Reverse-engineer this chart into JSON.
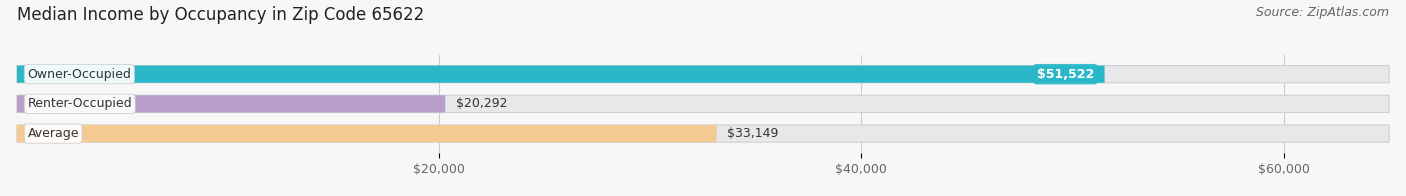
{
  "title": "Median Income by Occupancy in Zip Code 65622",
  "source": "Source: ZipAtlas.com",
  "categories": [
    "Owner-Occupied",
    "Renter-Occupied",
    "Average"
  ],
  "values": [
    51522,
    20292,
    33149
  ],
  "bar_colors": [
    "#2ab8c8",
    "#b89ec8",
    "#f5c992"
  ],
  "bar_bg_color": "#e8e8ea",
  "bar_border_color": "#d0d0d4",
  "value_labels": [
    "$51,522",
    "$20,292",
    "$33,149"
  ],
  "value_label_inside": [
    true,
    false,
    false
  ],
  "xlim": [
    0,
    65000
  ],
  "xticks": [
    20000,
    40000,
    60000
  ],
  "xtick_labels": [
    "$20,000",
    "$40,000",
    "$60,000"
  ],
  "title_fontsize": 12,
  "source_fontsize": 9,
  "label_fontsize": 9,
  "value_fontsize": 9,
  "tick_fontsize": 9,
  "background_color": "#f7f7f7",
  "bar_height": 0.58,
  "rounding_size": 0.28
}
